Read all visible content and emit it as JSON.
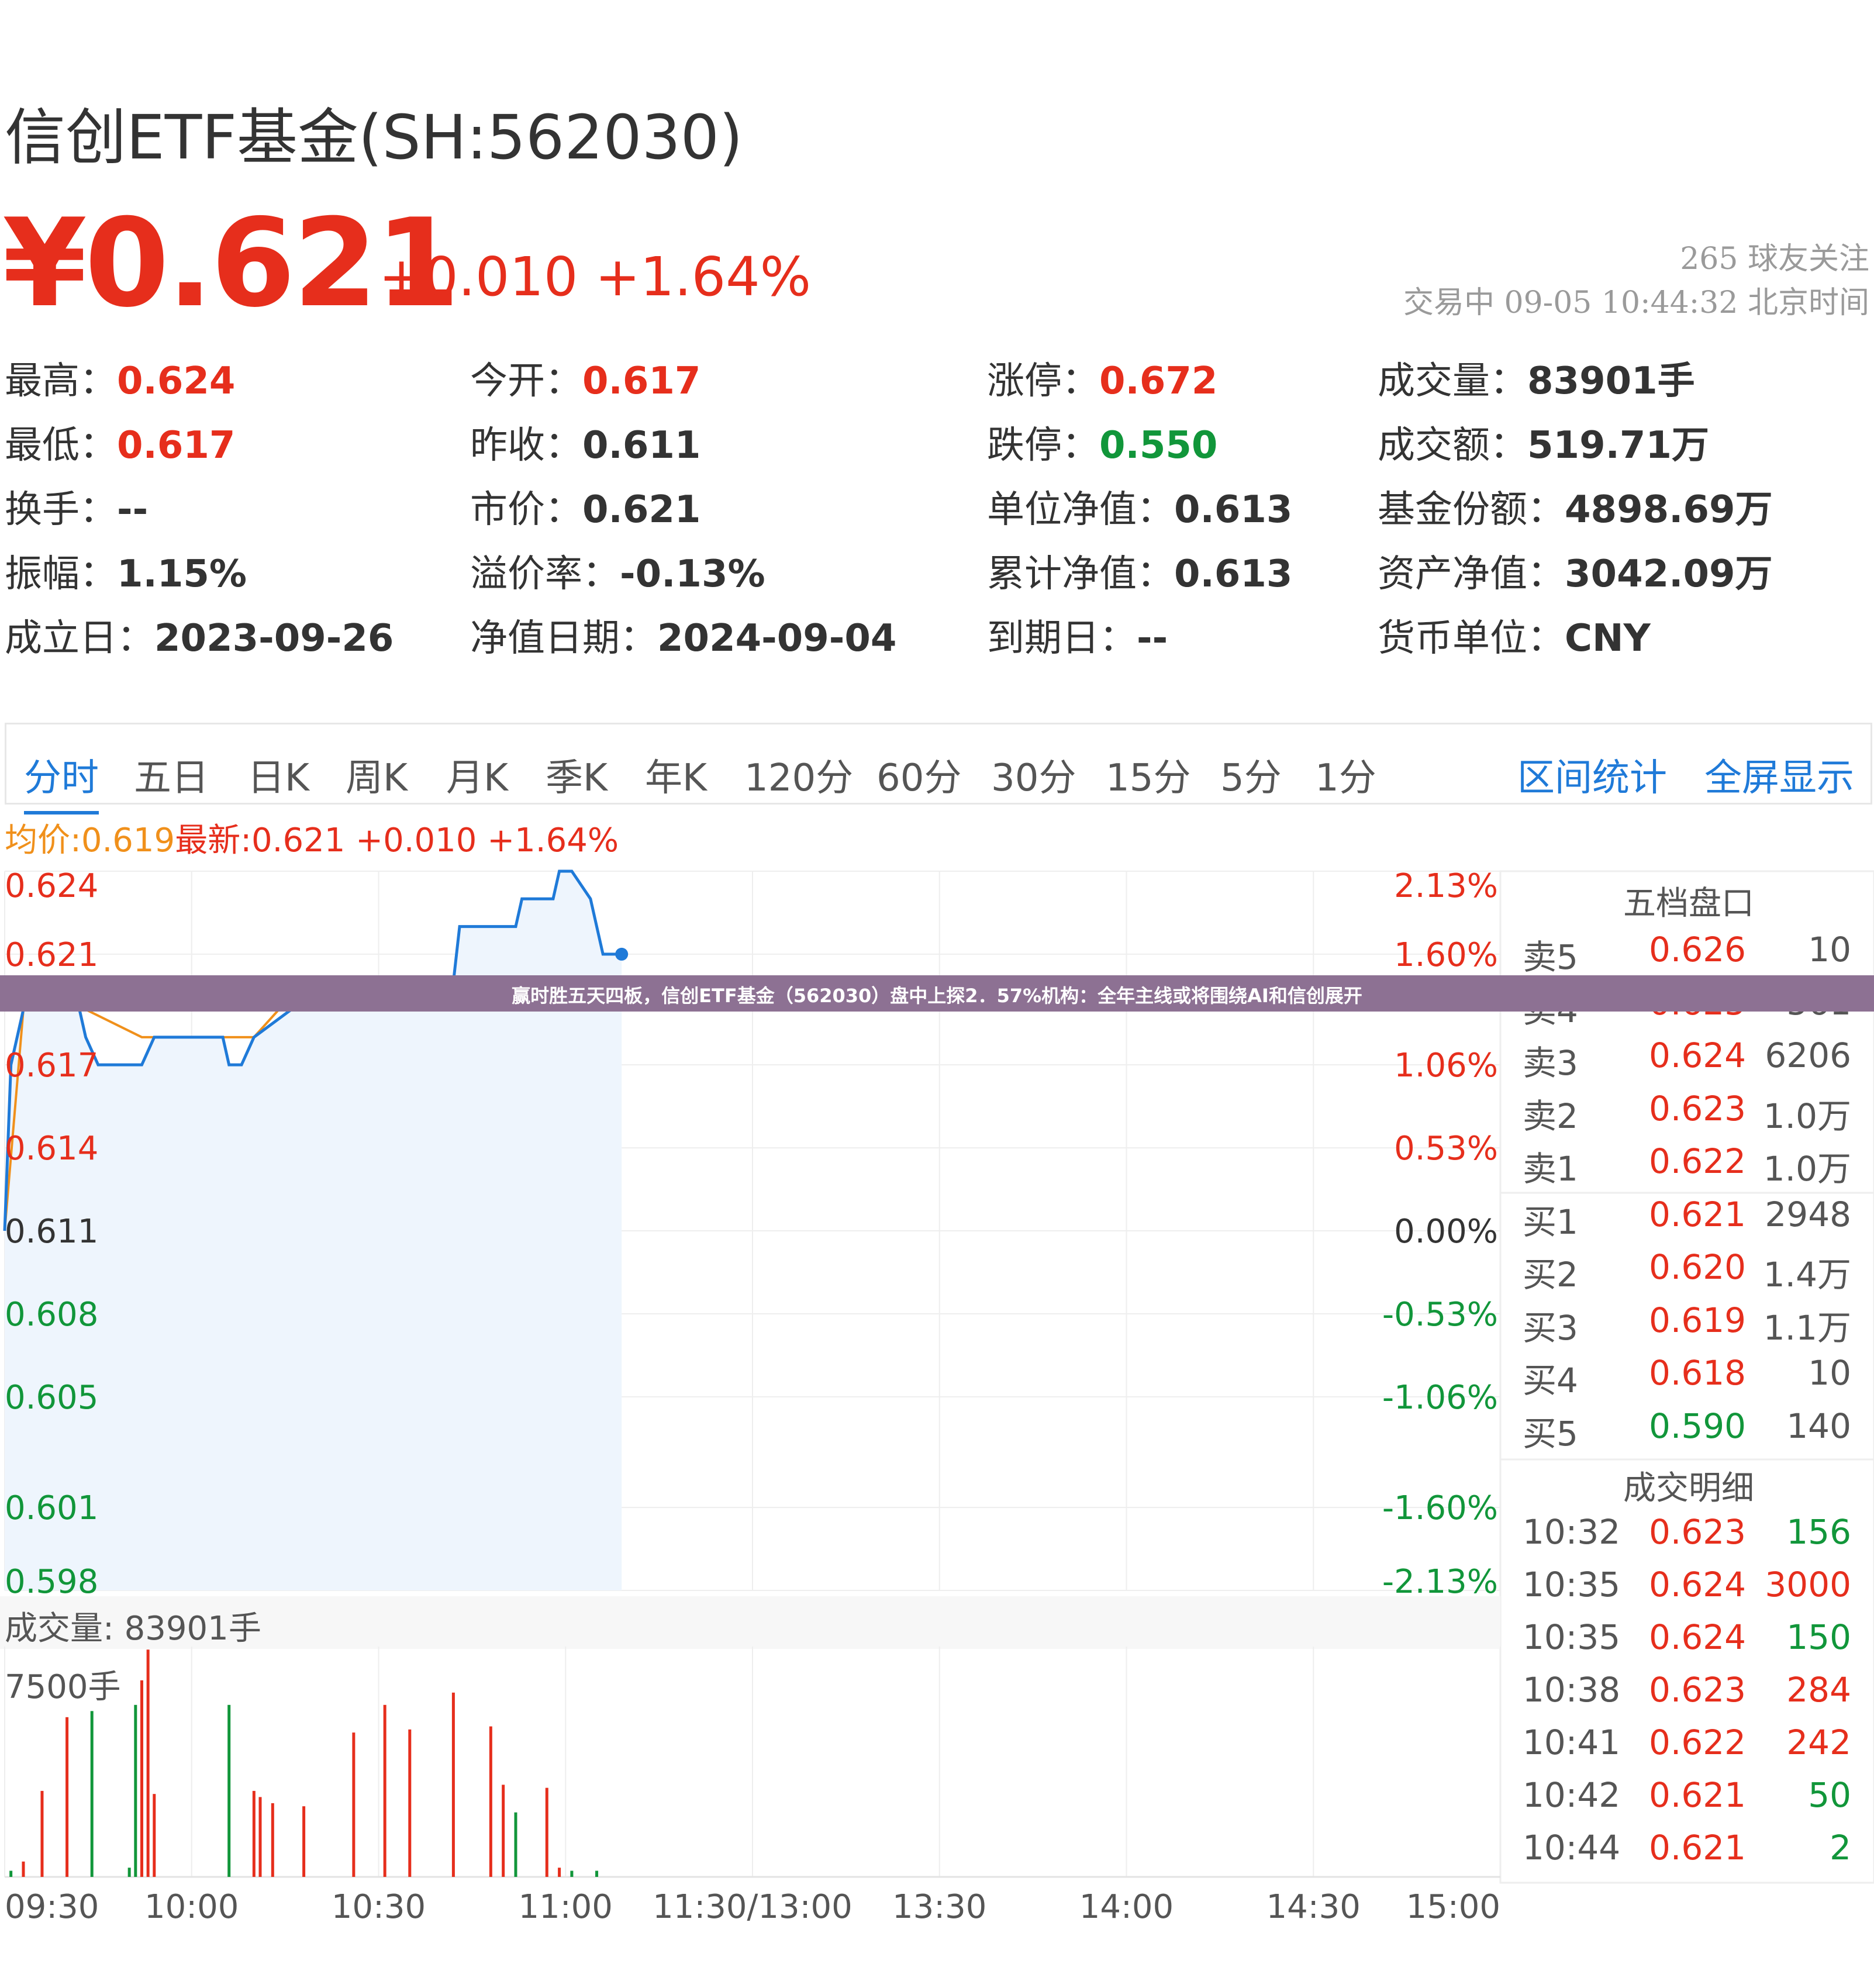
{
  "header": {
    "title": "信创ETF基金(SH:562030)",
    "price": "¥0.621",
    "change": "+0.010 +1.64%",
    "followers": "265 球友关注",
    "status_time": "交易中 09-05 10:44:32 北京时间"
  },
  "stats": [
    {
      "label": "最高：",
      "value": "0.624",
      "color": "red"
    },
    {
      "label": "今开：",
      "value": "0.617",
      "color": "red"
    },
    {
      "label": "涨停：",
      "value": "0.672",
      "color": "red"
    },
    {
      "label": "成交量：",
      "value": "83901手",
      "color": ""
    },
    {
      "label": "最低：",
      "value": "0.617",
      "color": "red"
    },
    {
      "label": "昨收：",
      "value": "0.611",
      "color": ""
    },
    {
      "label": "跌停：",
      "value": "0.550",
      "color": "green"
    },
    {
      "label": "成交额：",
      "value": "519.71万",
      "color": ""
    },
    {
      "label": "换手：",
      "value": "--",
      "color": ""
    },
    {
      "label": "市价：",
      "value": "0.621",
      "color": ""
    },
    {
      "label": "单位净值：",
      "value": "0.613",
      "color": ""
    },
    {
      "label": "基金份额：",
      "value": "4898.69万",
      "color": ""
    },
    {
      "label": "振幅：",
      "value": "1.15%",
      "color": ""
    },
    {
      "label": "溢价率：",
      "value": "-0.13%",
      "color": ""
    },
    {
      "label": "累计净值：",
      "value": "0.613",
      "color": ""
    },
    {
      "label": "资产净值：",
      "value": "3042.09万",
      "color": ""
    },
    {
      "label": "成立日：",
      "value": "2023-09-26",
      "color": ""
    },
    {
      "label": "净值日期：",
      "value": "2024-09-04",
      "color": ""
    },
    {
      "label": "到期日：",
      "value": "--",
      "color": ""
    },
    {
      "label": "货币单位：",
      "value": "CNY",
      "color": ""
    }
  ],
  "tabs": [
    "分时",
    "五日",
    "日K",
    "周K",
    "月K",
    "季K",
    "年K",
    "120分",
    "60分",
    "30分",
    "15分",
    "5分",
    "1分"
  ],
  "tab_actions": {
    "range_stats": "区间统计",
    "fullscreen": "全屏显示"
  },
  "info_line": {
    "avg_label": "均价:0.619",
    "latest_label": "最新:0.621 +0.010 +1.64%"
  },
  "banner": "赢时胜五天四板，信创ETF基金（562030）盘中上探2．57%机构：全年主线或将围绕AI和信创展开",
  "order_book": {
    "title": "五档盘口",
    "rows": [
      {
        "label": "卖5",
        "price": "0.626",
        "volume": "10",
        "color": "red"
      },
      {
        "label": "卖4",
        "price": "0.625",
        "volume": "561",
        "color": "red"
      },
      {
        "label": "卖3",
        "price": "0.624",
        "volume": "6206",
        "color": "red"
      },
      {
        "label": "卖2",
        "price": "0.623",
        "volume": "1.0万",
        "color": "red"
      },
      {
        "label": "卖1",
        "price": "0.622",
        "volume": "1.0万",
        "color": "red"
      },
      {
        "label": "买1",
        "price": "0.621",
        "volume": "2948",
        "color": "red"
      },
      {
        "label": "买2",
        "price": "0.620",
        "volume": "1.4万",
        "color": "red"
      },
      {
        "label": "买3",
        "price": "0.619",
        "volume": "1.1万",
        "color": "red"
      },
      {
        "label": "买4",
        "price": "0.618",
        "volume": "10",
        "color": "red"
      },
      {
        "label": "买5",
        "price": "0.590",
        "volume": "140",
        "color": "green"
      }
    ]
  },
  "trade_detail": {
    "title": "成交明细",
    "rows": [
      {
        "time": "10:32",
        "price": "0.623",
        "volume": "156",
        "color": "green"
      },
      {
        "time": "10:35",
        "price": "0.624",
        "volume": "3000",
        "color": "red"
      },
      {
        "time": "10:35",
        "price": "0.624",
        "volume": "150",
        "color": "green"
      },
      {
        "time": "10:38",
        "price": "0.623",
        "volume": "284",
        "color": "red"
      },
      {
        "time": "10:41",
        "price": "0.622",
        "volume": "242",
        "color": "red"
      },
      {
        "time": "10:42",
        "price": "0.621",
        "volume": "50",
        "color": "green"
      },
      {
        "time": "10:44",
        "price": "0.621",
        "volume": "2",
        "color": "green"
      }
    ]
  },
  "volume_panel": {
    "label": "成交量: 83901手",
    "scale": "7500手"
  },
  "colors": {
    "up": "#e62e1c",
    "down": "#11963a",
    "line": "#1f7ad8",
    "avg": "#f0901b",
    "banner": "#8d7193"
  },
  "chart_data": {
    "type": "line",
    "x_ticks": [
      "09:30",
      "10:00",
      "10:30",
      "11:00",
      "11:30/13:00",
      "13:30",
      "14:00",
      "14:30",
      "15:00"
    ],
    "y_ticks_left": [
      {
        "value": 0.624,
        "label": "0.624",
        "color": "red"
      },
      {
        "value": 0.621,
        "label": "0.621",
        "color": "red"
      },
      {
        "value": 0.617,
        "label": "0.617",
        "color": "red"
      },
      {
        "value": 0.614,
        "label": "0.614",
        "color": "red"
      },
      {
        "value": 0.611,
        "label": "0.611",
        "color": "neutral"
      },
      {
        "value": 0.608,
        "label": "0.608",
        "color": "green"
      },
      {
        "value": 0.605,
        "label": "0.605",
        "color": "green"
      },
      {
        "value": 0.601,
        "label": "0.601",
        "color": "green"
      },
      {
        "value": 0.598,
        "label": "0.598",
        "color": "green"
      }
    ],
    "y_ticks_right": [
      {
        "value": 0.624,
        "label": "2.13%",
        "color": "red"
      },
      {
        "value": 0.621,
        "label": "1.60%",
        "color": "red"
      },
      {
        "value": 0.617,
        "label": "1.06%",
        "color": "red"
      },
      {
        "value": 0.614,
        "label": "0.53%",
        "color": "red"
      },
      {
        "value": 0.611,
        "label": "0.00%",
        "color": "neutral"
      },
      {
        "value": 0.608,
        "label": "-0.53%",
        "color": "green"
      },
      {
        "value": 0.605,
        "label": "-1.06%",
        "color": "green"
      },
      {
        "value": 0.601,
        "label": "-1.60%",
        "color": "green"
      },
      {
        "value": 0.598,
        "label": "-2.13%",
        "color": "green"
      }
    ],
    "ylim": [
      0.598,
      0.624
    ],
    "x_minutes_range": [
      0,
      240
    ],
    "price_series": {
      "name": "最新",
      "points": [
        [
          0,
          0.611
        ],
        [
          1,
          0.617
        ],
        [
          3,
          0.619
        ],
        [
          5,
          0.62
        ],
        [
          11,
          0.62
        ],
        [
          13,
          0.618
        ],
        [
          15,
          0.617
        ],
        [
          22,
          0.617
        ],
        [
          24,
          0.618
        ],
        [
          35,
          0.618
        ],
        [
          36,
          0.617
        ],
        [
          38,
          0.617
        ],
        [
          40,
          0.618
        ],
        [
          46,
          0.619
        ],
        [
          60,
          0.619
        ],
        [
          61,
          0.62
        ],
        [
          72,
          0.62
        ],
        [
          73,
          0.622
        ],
        [
          82,
          0.622
        ],
        [
          83,
          0.623
        ],
        [
          88,
          0.623
        ],
        [
          89,
          0.624
        ],
        [
          91,
          0.624
        ],
        [
          94,
          0.623
        ],
        [
          96,
          0.621
        ],
        [
          99,
          0.621
        ]
      ]
    },
    "avg_series": {
      "name": "均价",
      "points": [
        [
          0,
          0.611
        ],
        [
          3,
          0.619
        ],
        [
          5,
          0.62
        ],
        [
          11,
          0.62
        ],
        [
          13,
          0.619
        ],
        [
          22,
          0.618
        ],
        [
          40,
          0.618
        ],
        [
          44,
          0.619
        ],
        [
          66,
          0.619
        ],
        [
          67,
          0.62
        ],
        [
          99,
          0.619
        ]
      ]
    },
    "volume_max": 7500,
    "volume_bars": [
      {
        "t": 1,
        "v": 200,
        "color": "green"
      },
      {
        "t": 3,
        "v": 500,
        "color": "red"
      },
      {
        "t": 6,
        "v": 2800,
        "color": "red"
      },
      {
        "t": 10,
        "v": 5200,
        "color": "red"
      },
      {
        "t": 14,
        "v": 5400,
        "color": "green"
      },
      {
        "t": 20,
        "v": 300,
        "color": "green"
      },
      {
        "t": 21,
        "v": 5600,
        "color": "green"
      },
      {
        "t": 22,
        "v": 6400,
        "color": "red"
      },
      {
        "t": 23,
        "v": 7400,
        "color": "red"
      },
      {
        "t": 24,
        "v": 2700,
        "color": "red"
      },
      {
        "t": 36,
        "v": 5600,
        "color": "green"
      },
      {
        "t": 40,
        "v": 2800,
        "color": "red"
      },
      {
        "t": 41,
        "v": 2600,
        "color": "red"
      },
      {
        "t": 43,
        "v": 2400,
        "color": "red"
      },
      {
        "t": 48,
        "v": 2300,
        "color": "red"
      },
      {
        "t": 56,
        "v": 4700,
        "color": "red"
      },
      {
        "t": 61,
        "v": 5600,
        "color": "red"
      },
      {
        "t": 65,
        "v": 4800,
        "color": "red"
      },
      {
        "t": 72,
        "v": 6000,
        "color": "red"
      },
      {
        "t": 78,
        "v": 4900,
        "color": "red"
      },
      {
        "t": 80,
        "v": 3000,
        "color": "red"
      },
      {
        "t": 82,
        "v": 2100,
        "color": "green"
      },
      {
        "t": 87,
        "v": 2900,
        "color": "red"
      },
      {
        "t": 89,
        "v": 300,
        "color": "red"
      },
      {
        "t": 91,
        "v": 200,
        "color": "green"
      },
      {
        "t": 95,
        "v": 200,
        "color": "green"
      }
    ]
  }
}
